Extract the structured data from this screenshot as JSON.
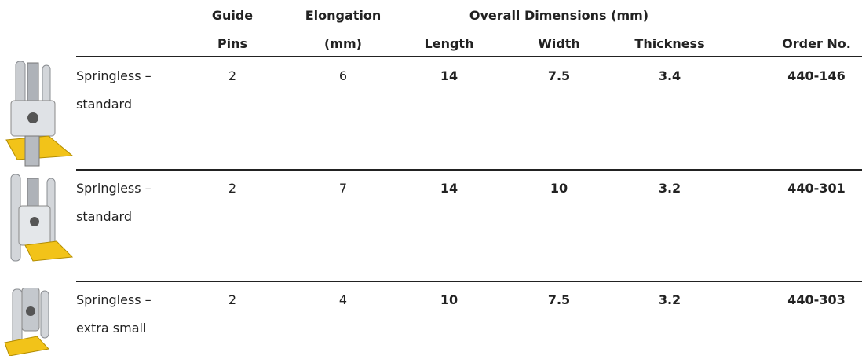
{
  "table": {
    "header": {
      "row1": {
        "guide": "Guide",
        "elongation": "Elongation",
        "overall": "Overall Dimensions (mm)"
      },
      "row2": [
        "Pins",
        "(mm)",
        "Length",
        "Width",
        "Thickness",
        "Order No."
      ]
    },
    "rows": [
      {
        "name": [
          "Springless –",
          "standard"
        ],
        "guide_pins": 2,
        "elongation": 6,
        "length": 14,
        "width": 7.5,
        "thickness": 3.4,
        "order_no": "440-146"
      },
      {
        "name": [
          "Springless –",
          "standard"
        ],
        "guide_pins": 2,
        "elongation": 7,
        "length": 14,
        "width": 10,
        "thickness": 3.2,
        "order_no": "440-301"
      },
      {
        "name": [
          "Springless –",
          "extra small"
        ],
        "guide_pins": 2,
        "elongation": 4,
        "length": 10,
        "width": 7.5,
        "thickness": 3.2,
        "order_no": "440-303"
      }
    ]
  }
}
